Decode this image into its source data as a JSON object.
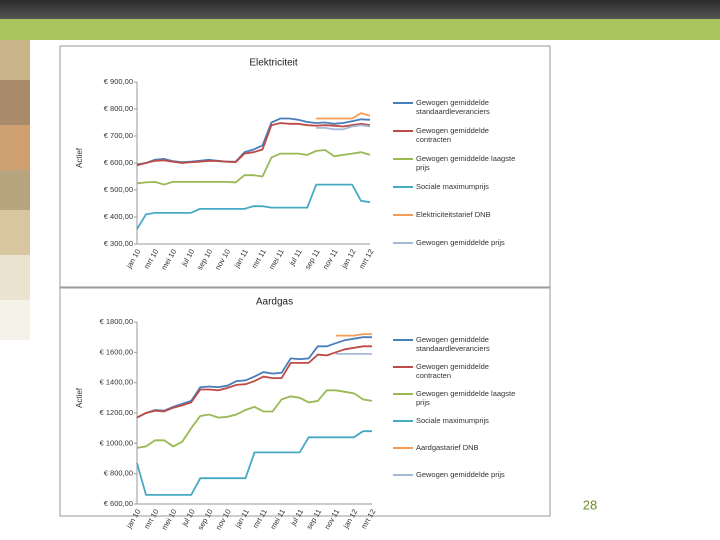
{
  "page_number": "28",
  "chart_data": [
    {
      "type": "line",
      "title": "Elektriciteit",
      "y_label": "Actief",
      "categories": [
        "jan 10",
        null,
        "mrt 10",
        null,
        "mei 10",
        null,
        "jul 10",
        null,
        "sep 10",
        null,
        "nov 10",
        null,
        "jan 11",
        null,
        "mrt 11",
        null,
        "mei 11",
        null,
        "jul 11",
        null,
        "sep 11",
        null,
        "nov 11",
        null,
        "jan 12",
        null,
        "mrt 12"
      ],
      "ylim": [
        300,
        900
      ],
      "yticks": [
        {
          "value": 300,
          "label": "€ 300,00"
        },
        {
          "value": 400,
          "label": "€ 400,00"
        },
        {
          "value": 500,
          "label": "€ 500,00"
        },
        {
          "value": 600,
          "label": "€ 600,00"
        },
        {
          "value": 700,
          "label": "€ 700,00"
        },
        {
          "value": 800,
          "label": "€ 800,00"
        },
        {
          "value": 900,
          "label": "€ 900,00"
        }
      ],
      "grid": false,
      "legend": "right",
      "series": [
        {
          "name": "Gewogen gemiddelde standaardleveranciers",
          "color": "#4a7ebb",
          "values": [
            595,
            600,
            612,
            615,
            607,
            603,
            605,
            608,
            612,
            608,
            605,
            605,
            640,
            650,
            665,
            750,
            765,
            765,
            760,
            752,
            748,
            750,
            745,
            748,
            755,
            762,
            760
          ]
        },
        {
          "name": "Gewogen gemiddelde contracten",
          "color": "#be4b48",
          "values": [
            592,
            600,
            608,
            610,
            605,
            600,
            603,
            605,
            608,
            607,
            605,
            603,
            635,
            640,
            650,
            740,
            748,
            745,
            745,
            740,
            738,
            740,
            738,
            735,
            740,
            745,
            740
          ]
        },
        {
          "name": "Gewogen gemiddelde laagste prijs",
          "color": "#98b954",
          "values": [
            525,
            528,
            530,
            520,
            530,
            530,
            530,
            530,
            530,
            530,
            530,
            528,
            555,
            555,
            550,
            620,
            635,
            635,
            635,
            630,
            645,
            648,
            625,
            630,
            635,
            640,
            630
          ]
        },
        {
          "name": "Sociale maximumprijs",
          "color": "#46aac5",
          "values": [
            355,
            410,
            415,
            415,
            415,
            415,
            415,
            430,
            430,
            430,
            430,
            430,
            430,
            440,
            440,
            435,
            435,
            435,
            435,
            435,
            520,
            520,
            520,
            520,
            520,
            460,
            455
          ]
        },
        {
          "name": "Elektriciteitstarief DNB",
          "color": "#f59d56",
          "values": [
            null,
            null,
            null,
            null,
            null,
            null,
            null,
            null,
            null,
            null,
            null,
            null,
            null,
            null,
            null,
            null,
            null,
            null,
            null,
            null,
            765,
            765,
            765,
            765,
            765,
            785,
            775
          ]
        },
        {
          "name": "Gewogen gemiddelde prijs",
          "color": "#a5b9d8",
          "values": [
            null,
            null,
            null,
            null,
            null,
            null,
            null,
            null,
            null,
            null,
            null,
            null,
            null,
            null,
            null,
            null,
            null,
            null,
            null,
            null,
            730,
            730,
            725,
            725,
            735,
            740,
            735
          ]
        }
      ]
    },
    {
      "type": "line",
      "title": "Aardgas",
      "y_label": "Actief",
      "categories": [
        "jan 10",
        null,
        "mrt 10",
        null,
        "mei 10",
        null,
        "jul 10",
        null,
        "sep 10",
        null,
        "nov 10",
        null,
        "jan 11",
        null,
        "mrt 11",
        null,
        "mei 11",
        null,
        "jul 11",
        null,
        "sep 11",
        null,
        "nov 11",
        null,
        "jan 12",
        null,
        "mrt 12"
      ],
      "ylim": [
        600,
        1800
      ],
      "yticks": [
        {
          "value": 600,
          "label": "€ 600,00"
        },
        {
          "value": 800,
          "label": "€ 800,00"
        },
        {
          "value": 1000,
          "label": "€ 1000,00"
        },
        {
          "value": 1200,
          "label": "€ 1200,00"
        },
        {
          "value": 1400,
          "label": "€ 1400,00"
        },
        {
          "value": 1600,
          "label": "€ 1600,00"
        },
        {
          "value": 1800,
          "label": "€ 1800,00"
        }
      ],
      "grid": false,
      "legend": "right",
      "series": [
        {
          "name": "Gewogen gemiddelde standaardleveranciers",
          "color": "#4a7ebb",
          "values": [
            1170,
            1200,
            1220,
            1215,
            1240,
            1260,
            1280,
            1370,
            1375,
            1370,
            1380,
            1410,
            1415,
            1440,
            1470,
            1460,
            1465,
            1560,
            1555,
            1560,
            1640,
            1640,
            1660,
            1680,
            1690,
            1700,
            1700
          ]
        },
        {
          "name": "Gewogen gemiddelde contracten",
          "color": "#be4b48",
          "values": [
            1170,
            1200,
            1215,
            1210,
            1235,
            1250,
            1270,
            1355,
            1355,
            1350,
            1365,
            1385,
            1390,
            1410,
            1440,
            1430,
            1430,
            1530,
            1530,
            1530,
            1585,
            1580,
            1600,
            1620,
            1630,
            1640,
            1640
          ]
        },
        {
          "name": "Gewogen gemiddelde laagste prijs",
          "color": "#98b954",
          "values": [
            970,
            980,
            1020,
            1020,
            980,
            1010,
            1100,
            1180,
            1190,
            1170,
            1175,
            1190,
            1220,
            1240,
            1210,
            1210,
            1290,
            1310,
            1300,
            1270,
            1280,
            1350,
            1350,
            1340,
            1330,
            1290,
            1280
          ]
        },
        {
          "name": "Sociale maximumprijs",
          "color": "#46aac5",
          "values": [
            870,
            660,
            660,
            660,
            660,
            660,
            660,
            770,
            770,
            770,
            770,
            770,
            770,
            940,
            940,
            940,
            940,
            940,
            940,
            1040,
            1040,
            1040,
            1040,
            1040,
            1040,
            1080,
            1080
          ]
        },
        {
          "name": "Aardgastarief DNB",
          "color": "#f59d56",
          "values": [
            null,
            null,
            null,
            null,
            null,
            null,
            null,
            null,
            null,
            null,
            null,
            null,
            null,
            null,
            null,
            null,
            null,
            null,
            null,
            null,
            null,
            null,
            1710,
            1710,
            1710,
            1720,
            1720
          ]
        },
        {
          "name": "Gewogen gemiddelde prijs",
          "color": "#a5b9d8",
          "values": [
            null,
            null,
            null,
            null,
            null,
            null,
            null,
            null,
            null,
            null,
            null,
            null,
            null,
            null,
            null,
            null,
            null,
            null,
            null,
            null,
            null,
            null,
            1590,
            1590,
            1590,
            1590,
            1590
          ]
        }
      ]
    }
  ]
}
